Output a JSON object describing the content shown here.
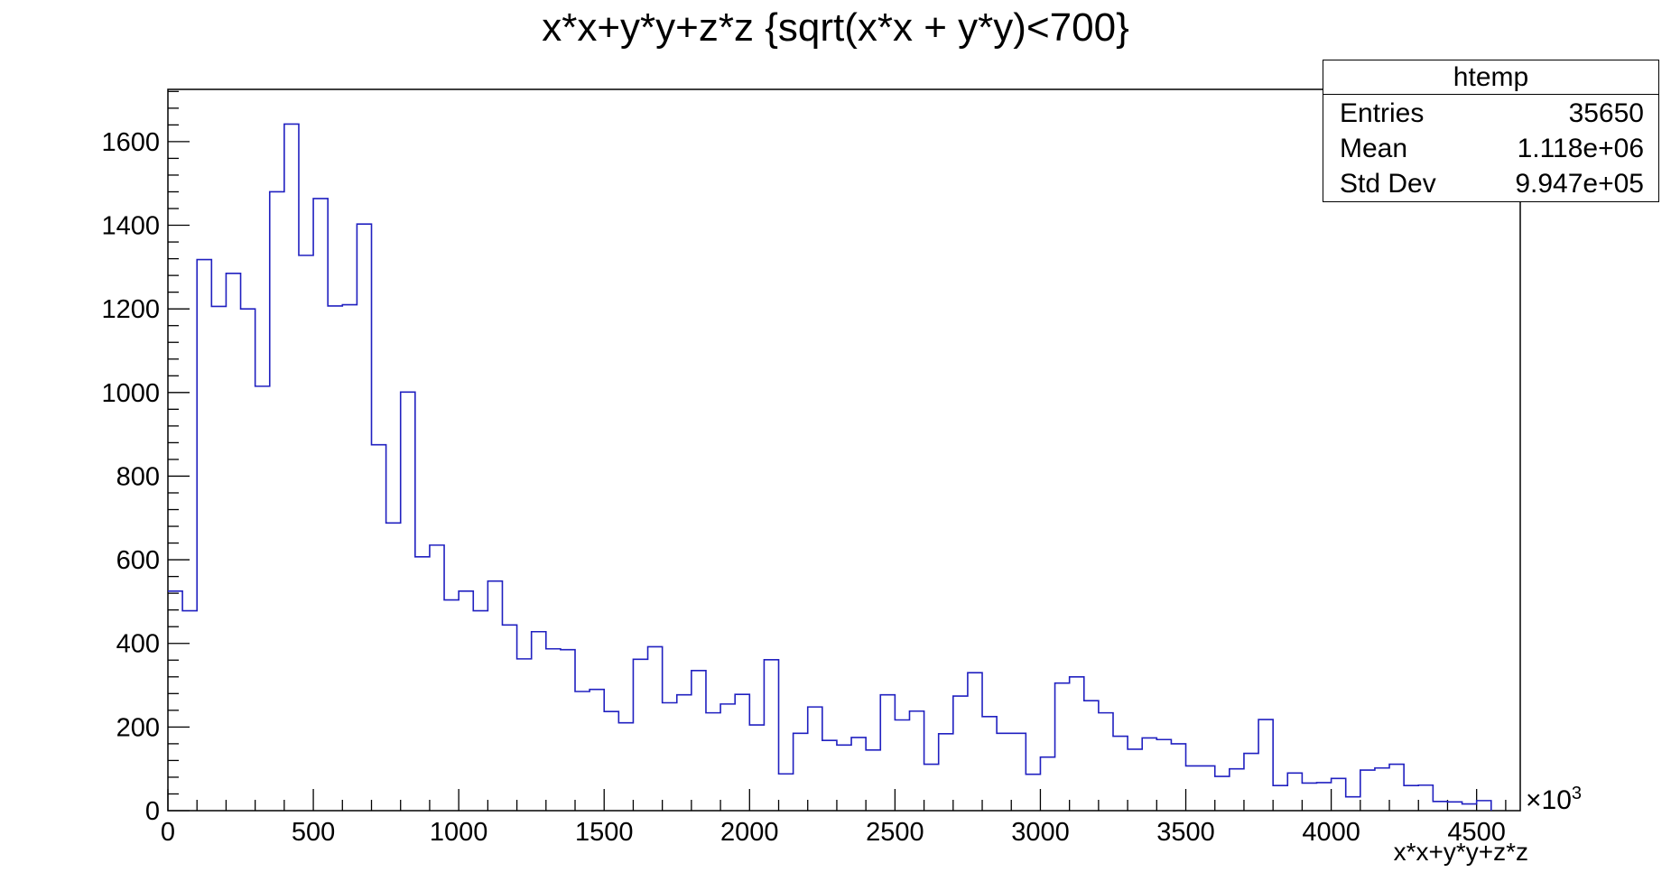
{
  "chart_data": {
    "type": "histogram",
    "title": "x*x+y*y+z*z {sqrt(x*x + y*y)<700}",
    "xlabel": "x*x+y*y+z*z",
    "ylabel": "",
    "x_multiplier": "×10",
    "x_multiplier_exp": "3",
    "xlim": [
      0,
      4650
    ],
    "ylim": [
      0,
      1725
    ],
    "bin_width": 50,
    "bin_start": 0,
    "x_ticks": [
      0,
      500,
      1000,
      1500,
      2000,
      2500,
      3000,
      3500,
      4000,
      4500
    ],
    "x_tick_labels": [
      "0",
      "500",
      "1000",
      "1500",
      "2000",
      "2500",
      "3000",
      "3500",
      "4000",
      "4500"
    ],
    "y_ticks": [
      0,
      200,
      400,
      600,
      800,
      1000,
      1200,
      1400,
      1600
    ],
    "y_tick_labels": [
      "0",
      "200",
      "400",
      "600",
      "800",
      "1000",
      "1200",
      "1400",
      "1600"
    ],
    "line_color": "#2020c0",
    "values": [
      525,
      478,
      1318,
      1206,
      1285,
      1200,
      1015,
      1480,
      1642,
      1328,
      1464,
      1207,
      1210,
      1403,
      875,
      688,
      1001,
      607,
      635,
      504,
      525,
      478,
      549,
      444,
      363,
      428,
      387,
      385,
      285,
      290,
      237,
      210,
      362,
      392,
      258,
      277,
      335,
      234,
      255,
      278,
      205,
      361,
      88,
      185,
      248,
      168,
      157,
      175,
      145,
      277,
      217,
      238,
      111,
      184,
      274,
      330,
      225,
      185,
      185,
      87,
      128,
      305,
      320,
      263,
      234,
      178,
      147,
      174,
      170,
      160,
      107,
      107,
      82,
      100,
      137,
      218,
      60,
      90,
      66,
      67,
      77,
      33,
      97,
      102,
      111,
      60,
      61,
      22,
      21,
      16,
      24
    ]
  },
  "stats_box": {
    "title": "htemp",
    "rows": [
      {
        "label": "Entries",
        "value": "35650"
      },
      {
        "label": "Mean",
        "value": "1.118e+06"
      },
      {
        "label": "Std Dev",
        "value": "9.947e+05"
      }
    ]
  }
}
